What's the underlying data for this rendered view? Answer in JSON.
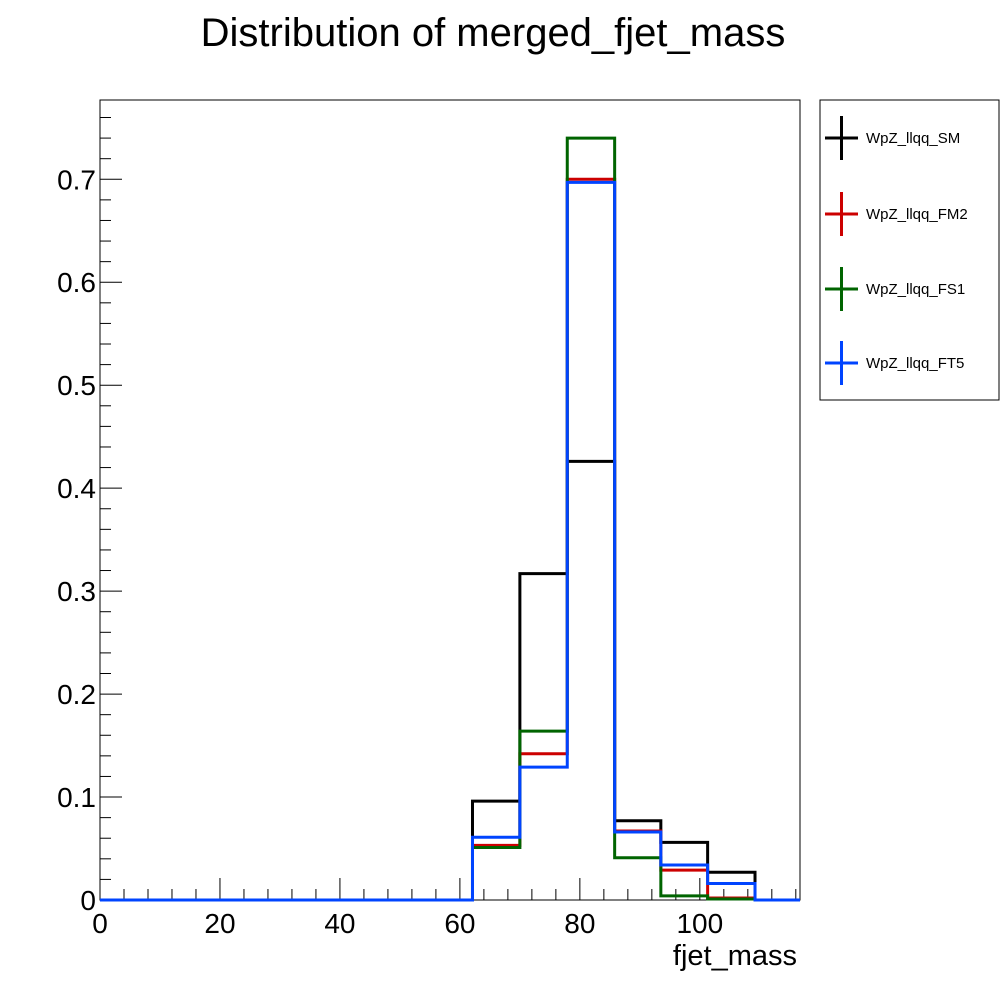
{
  "chart_data": {
    "type": "line",
    "title": "Distribution of merged_fjet_mass",
    "xlabel": "fjet_mass",
    "ylabel": "",
    "xlim": [
      0,
      116.7
    ],
    "ylim": [
      0,
      0.777
    ],
    "x_ticks": [
      0,
      20,
      40,
      60,
      80,
      100
    ],
    "y_ticks": [
      0,
      0.1,
      0.2,
      0.3,
      0.4,
      0.5,
      0.6,
      0.7
    ],
    "y_tick_labels": [
      "0",
      "0.1",
      "0.2",
      "0.3",
      "0.4",
      "0.5",
      "0.6",
      "0.7"
    ],
    "bin_edges": [
      0,
      62.1,
      70,
      77.9,
      85.8,
      93.5,
      101.3,
      109.2,
      116.7
    ],
    "grid": false,
    "legend_position": "outside-right",
    "series": [
      {
        "name": "WpZ_llqq_SM",
        "color": "#000000",
        "values": [
          0,
          0.096,
          0.317,
          0.426,
          0.077,
          0.056,
          0.027,
          0
        ]
      },
      {
        "name": "WpZ_llqq_FM2",
        "color": "#cc0000",
        "values": [
          0,
          0.053,
          0.142,
          0.7,
          0.067,
          0.029,
          0.002,
          0
        ]
      },
      {
        "name": "WpZ_llqq_FS1",
        "color": "#006400",
        "values": [
          0,
          0.051,
          0.164,
          0.74,
          0.041,
          0.004,
          0.001,
          0
        ]
      },
      {
        "name": "WpZ_llqq_FT5",
        "color": "#0044ff",
        "values": [
          0,
          0.061,
          0.129,
          0.697,
          0.066,
          0.034,
          0.016,
          0
        ]
      }
    ]
  }
}
